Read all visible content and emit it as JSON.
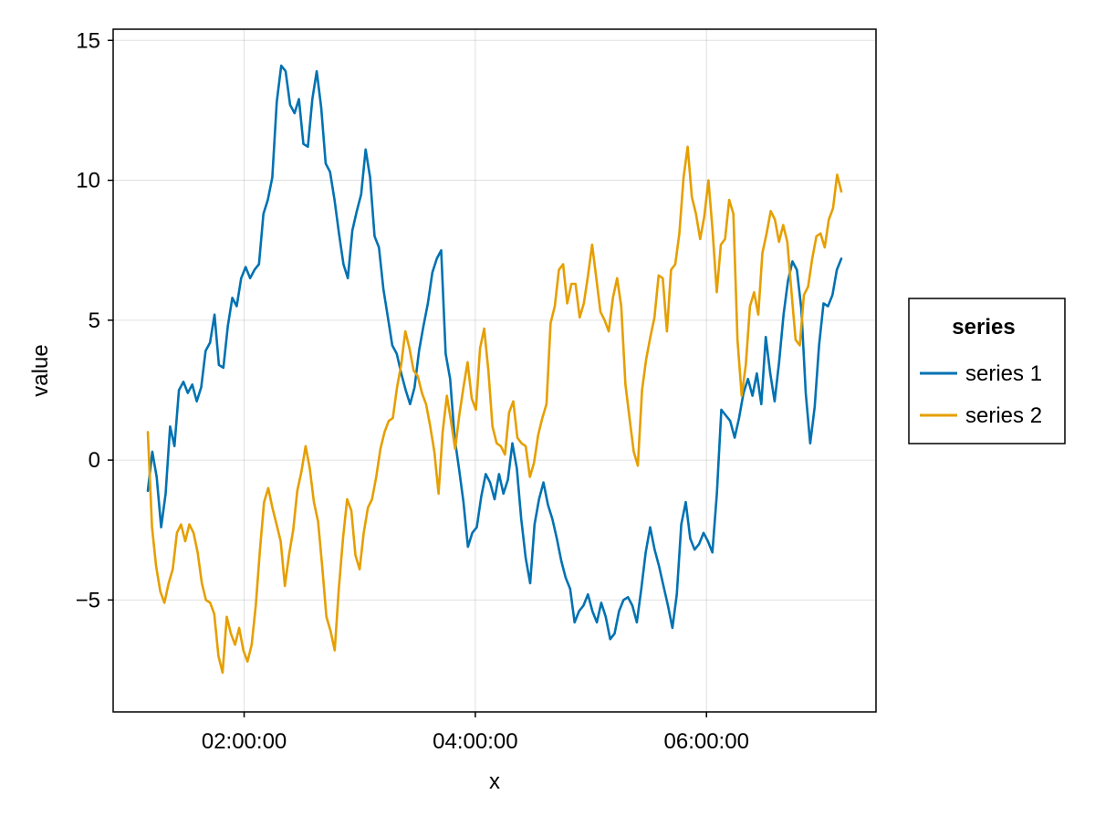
{
  "chart_data": {
    "type": "line",
    "title": "",
    "xlabel": "x",
    "ylabel": "value",
    "x_start": "01:10:00",
    "x_end": "07:10:00",
    "x_ticks": [
      "02:00:00",
      "04:00:00",
      "06:00:00"
    ],
    "y_ticks": [
      -5,
      0,
      5,
      10,
      15
    ],
    "ylim": [
      -9,
      15.4
    ],
    "grid": true,
    "legend": {
      "title": "series",
      "position": "right"
    },
    "series": [
      {
        "name": "series 1",
        "color": "#0072b2",
        "values": [
          -1.1,
          0.3,
          -0.6,
          -2.4,
          -1.2,
          1.2,
          0.5,
          2.5,
          2.8,
          2.4,
          2.7,
          2.1,
          2.6,
          3.9,
          4.2,
          5.2,
          3.4,
          3.3,
          4.8,
          5.8,
          5.5,
          6.5,
          6.9,
          6.5,
          6.8,
          7.0,
          8.8,
          9.3,
          10.1,
          12.8,
          14.1,
          13.9,
          12.7,
          12.4,
          12.9,
          11.3,
          11.2,
          12.9,
          13.9,
          12.6,
          10.6,
          10.3,
          9.3,
          8.1,
          7.0,
          6.5,
          8.2,
          8.9,
          9.5,
          11.1,
          10.1,
          8.0,
          7.6,
          6.1,
          5.1,
          4.1,
          3.8,
          3.1,
          2.5,
          2.0,
          2.6,
          3.9,
          4.8,
          5.6,
          6.7,
          7.2,
          7.5,
          3.8,
          2.9,
          0.8,
          -0.3,
          -1.5,
          -3.1,
          -2.6,
          -2.4,
          -1.3,
          -0.5,
          -0.8,
          -1.4,
          -0.5,
          -1.2,
          -0.7,
          0.6,
          -0.3,
          -2.1,
          -3.5,
          -4.4,
          -2.3,
          -1.4,
          -0.8,
          -1.6,
          -2.1,
          -2.8,
          -3.6,
          -4.2,
          -4.6,
          -5.8,
          -5.4,
          -5.2,
          -4.8,
          -5.4,
          -5.8,
          -5.1,
          -5.6,
          -6.4,
          -6.2,
          -5.4,
          -5.0,
          -4.9,
          -5.2,
          -5.8,
          -4.6,
          -3.3,
          -2.4,
          -3.2,
          -3.8,
          -4.5,
          -5.2,
          -6.0,
          -4.8,
          -2.3,
          -1.5,
          -2.8,
          -3.2,
          -3.0,
          -2.6,
          -2.9,
          -3.3,
          -1.2,
          1.8,
          1.6,
          1.4,
          0.8,
          1.5,
          2.4,
          2.9,
          2.3,
          3.1,
          2.0,
          4.4,
          3.1,
          2.1,
          3.5,
          5.2,
          6.4,
          7.1,
          6.8,
          5.4,
          2.4,
          0.6,
          1.9,
          4.1,
          5.6,
          5.5,
          5.9,
          6.8,
          7.2
        ]
      },
      {
        "name": "series 2",
        "color": "#e69f00",
        "values": [
          1.0,
          -2.4,
          -3.8,
          -4.7,
          -5.1,
          -4.4,
          -3.9,
          -2.6,
          -2.3,
          -2.9,
          -2.3,
          -2.6,
          -3.3,
          -4.4,
          -5.0,
          -5.1,
          -5.5,
          -7.0,
          -7.6,
          -5.6,
          -6.2,
          -6.6,
          -6.0,
          -6.8,
          -7.2,
          -6.6,
          -5.2,
          -3.2,
          -1.5,
          -1.0,
          -1.7,
          -2.3,
          -2.9,
          -4.5,
          -3.4,
          -2.5,
          -1.1,
          -0.4,
          0.5,
          -0.3,
          -1.5,
          -2.2,
          -3.8,
          -5.6,
          -6.1,
          -6.8,
          -4.6,
          -2.8,
          -1.4,
          -1.8,
          -3.4,
          -3.9,
          -2.6,
          -1.7,
          -1.4,
          -0.6,
          0.4,
          1.0,
          1.4,
          1.5,
          2.6,
          3.4,
          4.6,
          4.0,
          3.2,
          3.0,
          2.4,
          2.0,
          1.2,
          0.3,
          -1.2,
          1.0,
          2.3,
          1.4,
          0.4,
          1.6,
          2.6,
          3.5,
          2.2,
          1.8,
          4.0,
          4.7,
          3.2,
          1.2,
          0.6,
          0.5,
          0.2,
          1.7,
          2.1,
          0.8,
          0.6,
          0.5,
          -0.6,
          -0.1,
          0.9,
          1.5,
          2.0,
          4.9,
          5.5,
          6.8,
          7.0,
          5.6,
          6.3,
          6.3,
          5.1,
          5.6,
          6.6,
          7.7,
          6.5,
          5.3,
          5.0,
          4.6,
          5.8,
          6.5,
          5.5,
          2.7,
          1.5,
          0.3,
          -0.2,
          2.5,
          3.6,
          4.4,
          5.1,
          6.6,
          6.5,
          4.6,
          6.8,
          7.0,
          8.1,
          10.1,
          11.2,
          9.4,
          8.8,
          7.9,
          8.7,
          10.0,
          8.2,
          6.0,
          7.7,
          7.9,
          9.3,
          8.8,
          4.3,
          2.3,
          3.4,
          5.5,
          6.0,
          5.2,
          7.4,
          8.1,
          8.9,
          8.6,
          7.8,
          8.4,
          7.8,
          6.0,
          4.3,
          4.1,
          5.9,
          6.2,
          7.2,
          8.0,
          8.1,
          7.6,
          8.6,
          9.0,
          10.2,
          9.6
        ]
      }
    ]
  }
}
